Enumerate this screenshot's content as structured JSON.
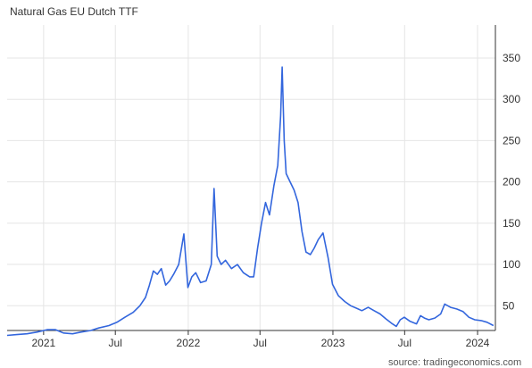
{
  "title": "Natural Gas EU Dutch TTF",
  "source": "source: tradingeconomics.com",
  "colors": {
    "line": "#3366dd",
    "grid": "#e5e5e5",
    "axis": "#333333",
    "text": "#333333"
  },
  "chart_data": {
    "type": "line",
    "title": "Natural Gas EU Dutch TTF",
    "xlabel": "",
    "ylabel": "",
    "ylim": [
      20,
      390
    ],
    "grid": true,
    "y_axis_side": "right",
    "yticks": [
      50,
      100,
      150,
      200,
      250,
      300,
      350
    ],
    "xticks": [
      {
        "label": "2021",
        "x": "2021-01-01"
      },
      {
        "label": "Jul",
        "x": "2021-07-01"
      },
      {
        "label": "2022",
        "x": "2022-01-01"
      },
      {
        "label": "Jul",
        "x": "2022-07-01"
      },
      {
        "label": "2023",
        "x": "2023-01-01"
      },
      {
        "label": "Jul",
        "x": "2023-07-01"
      },
      {
        "label": "2024",
        "x": "2024-01-01"
      }
    ],
    "xlim": [
      "2020-10-01",
      "2024-02-15"
    ],
    "series": [
      {
        "points": [
          [
            "2020-10-01",
            14
          ],
          [
            "2020-10-25",
            15
          ],
          [
            "2020-11-20",
            16
          ],
          [
            "2020-12-15",
            18
          ],
          [
            "2021-01-10",
            21
          ],
          [
            "2021-01-31",
            21
          ],
          [
            "2021-02-20",
            17
          ],
          [
            "2021-03-15",
            16
          ],
          [
            "2021-04-05",
            18
          ],
          [
            "2021-04-30",
            20
          ],
          [
            "2021-05-20",
            23
          ],
          [
            "2021-06-15",
            26
          ],
          [
            "2021-07-05",
            30
          ],
          [
            "2021-07-25",
            36
          ],
          [
            "2021-08-15",
            42
          ],
          [
            "2021-09-01",
            50
          ],
          [
            "2021-09-15",
            60
          ],
          [
            "2021-09-25",
            75
          ],
          [
            "2021-10-05",
            92
          ],
          [
            "2021-10-15",
            88
          ],
          [
            "2021-10-25",
            95
          ],
          [
            "2021-11-05",
            75
          ],
          [
            "2021-11-15",
            80
          ],
          [
            "2021-11-25",
            88
          ],
          [
            "2021-12-08",
            100
          ],
          [
            "2021-12-21",
            137
          ],
          [
            "2021-12-31",
            72
          ],
          [
            "2022-01-10",
            85
          ],
          [
            "2022-01-20",
            90
          ],
          [
            "2022-02-01",
            78
          ],
          [
            "2022-02-15",
            80
          ],
          [
            "2022-02-28",
            100
          ],
          [
            "2022-03-07",
            192
          ],
          [
            "2022-03-15",
            110
          ],
          [
            "2022-03-25",
            100
          ],
          [
            "2022-04-05",
            105
          ],
          [
            "2022-04-20",
            95
          ],
          [
            "2022-05-05",
            100
          ],
          [
            "2022-05-20",
            90
          ],
          [
            "2022-06-05",
            85
          ],
          [
            "2022-06-15",
            85
          ],
          [
            "2022-06-25",
            120
          ],
          [
            "2022-07-05",
            150
          ],
          [
            "2022-07-15",
            175
          ],
          [
            "2022-07-25",
            160
          ],
          [
            "2022-08-05",
            195
          ],
          [
            "2022-08-15",
            220
          ],
          [
            "2022-08-22",
            280
          ],
          [
            "2022-08-26",
            339
          ],
          [
            "2022-08-31",
            250
          ],
          [
            "2022-09-05",
            210
          ],
          [
            "2022-09-15",
            200
          ],
          [
            "2022-09-25",
            190
          ],
          [
            "2022-10-05",
            175
          ],
          [
            "2022-10-15",
            140
          ],
          [
            "2022-10-25",
            115
          ],
          [
            "2022-11-05",
            112
          ],
          [
            "2022-11-15",
            120
          ],
          [
            "2022-11-25",
            130
          ],
          [
            "2022-12-07",
            138
          ],
          [
            "2022-12-20",
            108
          ],
          [
            "2022-12-31",
            76
          ],
          [
            "2023-01-15",
            62
          ],
          [
            "2023-01-31",
            55
          ],
          [
            "2023-02-15",
            50
          ],
          [
            "2023-03-01",
            47
          ],
          [
            "2023-03-15",
            44
          ],
          [
            "2023-03-31",
            48
          ],
          [
            "2023-04-15",
            44
          ],
          [
            "2023-04-30",
            40
          ],
          [
            "2023-05-15",
            34
          ],
          [
            "2023-05-31",
            28
          ],
          [
            "2023-06-10",
            25
          ],
          [
            "2023-06-20",
            33
          ],
          [
            "2023-06-30",
            36
          ],
          [
            "2023-07-15",
            31
          ],
          [
            "2023-07-31",
            28
          ],
          [
            "2023-08-10",
            38
          ],
          [
            "2023-08-20",
            35
          ],
          [
            "2023-08-31",
            33
          ],
          [
            "2023-09-15",
            35
          ],
          [
            "2023-09-30",
            40
          ],
          [
            "2023-10-10",
            52
          ],
          [
            "2023-10-25",
            48
          ],
          [
            "2023-11-10",
            46
          ],
          [
            "2023-11-25",
            43
          ],
          [
            "2023-12-10",
            36
          ],
          [
            "2023-12-25",
            33
          ],
          [
            "2024-01-10",
            32
          ],
          [
            "2024-01-25",
            30
          ],
          [
            "2024-02-10",
            26
          ]
        ]
      }
    ]
  }
}
